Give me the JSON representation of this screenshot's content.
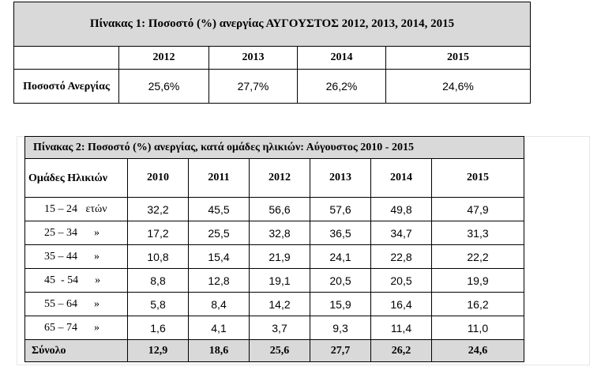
{
  "table1": {
    "title": "Πίνακας 1: Ποσοστό (%) ανεργίας  ΑΥΓΟΥΣΤΟΣ  2012, 2013, 2014, 2015",
    "years": [
      "2012",
      "2013",
      "2014",
      "2015"
    ],
    "row_label": "Ποσοστό Ανεργίας",
    "values": [
      "25,6%",
      "27,7%",
      "26,2%",
      "24,6%"
    ]
  },
  "table2": {
    "title": "Πίνακας 2: Ποσοστό (%) ανεργίας, κατά ομάδες ηλικιών: Αύγουστος 2010 - 2015",
    "header_label": "Ομάδες Ηλικιών",
    "years": [
      "2010",
      "2011",
      "2012",
      "2013",
      "2014",
      "2015"
    ],
    "rows": [
      {
        "label": "15 – 24   ετών",
        "values": [
          "32,2",
          "45,5",
          "56,6",
          "57,6",
          "49,8",
          "47,9"
        ]
      },
      {
        "label": "25 – 34      »",
        "values": [
          "17,2",
          "25,5",
          "32,8",
          "36,5",
          "34,7",
          "31,3"
        ]
      },
      {
        "label": "35 – 44      »",
        "values": [
          "10,8",
          "15,4",
          "21,9",
          "24,1",
          "22,8",
          "22,2"
        ]
      },
      {
        "label": "45  - 54      »",
        "values": [
          "8,8",
          "12,8",
          "19,1",
          "20,5",
          "20,5",
          "19,9"
        ]
      },
      {
        "label": "55 – 64      »",
        "values": [
          "5,8",
          "8,4",
          "14,2",
          "15,9",
          "16,4",
          "16,2"
        ]
      },
      {
        "label": "65 – 74      »",
        "values": [
          "1,6",
          "4,1",
          "3,7",
          "9,3",
          "11,4",
          "11,0"
        ]
      }
    ],
    "total": {
      "label": "Σύνολο",
      "values": [
        "12,9",
        "18,6",
        "25,6",
        "27,7",
        "26,2",
        "24,6"
      ]
    }
  }
}
